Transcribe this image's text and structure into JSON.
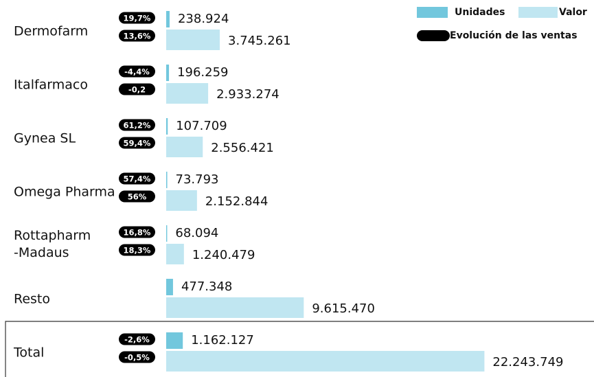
{
  "chart_data": {
    "type": "hbar",
    "categories": [
      "Dermofarm",
      "Italfarmaco",
      "Gynea SL",
      "Omega Pharma",
      "Rottapharm\n-Madaus",
      "Resto",
      "Total"
    ],
    "xlim": [
      0,
      24000000
    ],
    "series": [
      {
        "name": "Unidades",
        "color": "#72c7dd",
        "values": [
          238924,
          196259,
          107709,
          73793,
          68094,
          477348,
          1162127
        ],
        "value_labels": [
          "238.924",
          "196.259",
          "107.709",
          "73.793",
          "68.094",
          "477.348",
          "1.162.127"
        ],
        "evolution": [
          19.7,
          -4.4,
          61.2,
          57.4,
          16.8,
          null,
          -2.6
        ],
        "evolution_labels": [
          "19,7%",
          "-4,4%",
          "61,2%",
          "57,4%",
          "16,8%",
          null,
          "-2,6%"
        ]
      },
      {
        "name": "Valor",
        "color": "#c0e6f1",
        "values": [
          3745261,
          2933274,
          2556421,
          2152844,
          1240479,
          9615470,
          22243749
        ],
        "value_labels": [
          "3.745.261",
          "2.933.274",
          "2.556.421",
          "2.152.844",
          "1.240.479",
          "9.615.470",
          "22.243.749"
        ],
        "evolution": [
          13.6,
          -0.2,
          59.4,
          56,
          18.3,
          null,
          -0.5
        ],
        "evolution_labels": [
          "13,6%",
          "-0,2",
          "59,4%",
          "56%",
          "18,3%",
          null,
          "-0,5%"
        ]
      }
    ],
    "evolution_legend": {
      "name": "Evolución de las ventas",
      "color": "#000000"
    }
  }
}
